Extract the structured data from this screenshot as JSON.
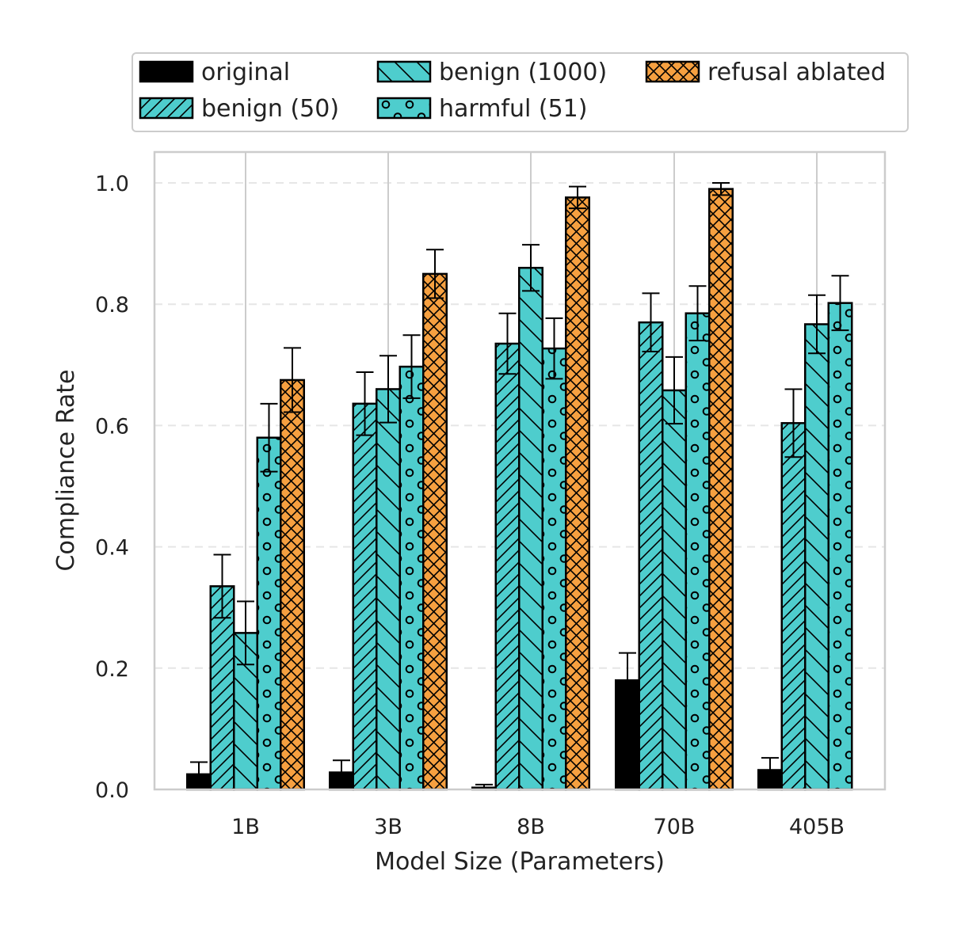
{
  "chart_data": {
    "type": "bar",
    "xlabel": "Model Size (Parameters)",
    "ylabel": "Compliance Rate",
    "ylim": [
      0.0,
      1.05
    ],
    "yticks": [
      "0.0",
      "0.2",
      "0.4",
      "0.6",
      "0.8",
      "1.0"
    ],
    "grid": true,
    "legend_placement": "top",
    "categories": [
      "1B",
      "3B",
      "8B",
      "70B",
      "405B"
    ],
    "series": [
      {
        "name": "original",
        "color": "#000000",
        "hatch": "none",
        "values": [
          0.025,
          0.028,
          0.003,
          0.18,
          0.032
        ],
        "errors": [
          0.02,
          0.02,
          0.005,
          0.045,
          0.02
        ]
      },
      {
        "name": "benign (50)",
        "color": "#4ecdcd",
        "hatch": "diagonal",
        "values": [
          0.335,
          0.636,
          0.735,
          0.77,
          0.604
        ],
        "errors": [
          0.052,
          0.052,
          0.05,
          0.048,
          0.056
        ]
      },
      {
        "name": "benign (1000)",
        "color": "#4ecdcd",
        "hatch": "backslash",
        "values": [
          0.258,
          0.66,
          0.86,
          0.658,
          0.767
        ],
        "errors": [
          0.052,
          0.055,
          0.038,
          0.055,
          0.048
        ]
      },
      {
        "name": "harmful (51)",
        "color": "#4ecdcd",
        "hatch": "circles",
        "values": [
          0.58,
          0.697,
          0.727,
          0.785,
          0.802
        ],
        "errors": [
          0.056,
          0.052,
          0.05,
          0.045,
          0.045
        ]
      },
      {
        "name": "refusal ablated",
        "color": "#f6a040",
        "hatch": "cross",
        "values": [
          0.675,
          0.85,
          0.976,
          0.99,
          null
        ],
        "errors": [
          0.053,
          0.04,
          0.018,
          0.01,
          null
        ]
      }
    ]
  }
}
